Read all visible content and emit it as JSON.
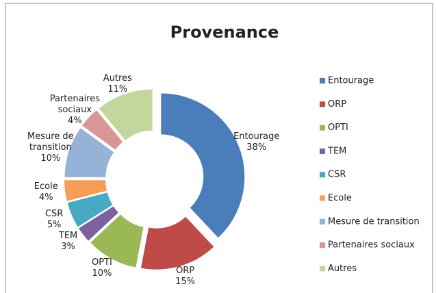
{
  "chart_data": {
    "type": "donut",
    "title": "Provenance",
    "categories": [
      "Entourage",
      "ORP",
      "OPTI",
      "TEM",
      "CSR",
      "Ecole",
      "Mesure de transition",
      "Partenaires sociaux",
      "Autres"
    ],
    "values": [
      38,
      15,
      10,
      3,
      5,
      4,
      10,
      4,
      11
    ],
    "value_labels": [
      "38%",
      "15%",
      "10%",
      "3%",
      "5%",
      "4%",
      "10%",
      "4%",
      "11%"
    ],
    "colors": [
      "#4a7ebb",
      "#be4b48",
      "#98b954",
      "#7d60a0",
      "#46aac5",
      "#f59d56",
      "#95b3d7",
      "#d99694",
      "#c3d69b"
    ],
    "legend": "right"
  }
}
